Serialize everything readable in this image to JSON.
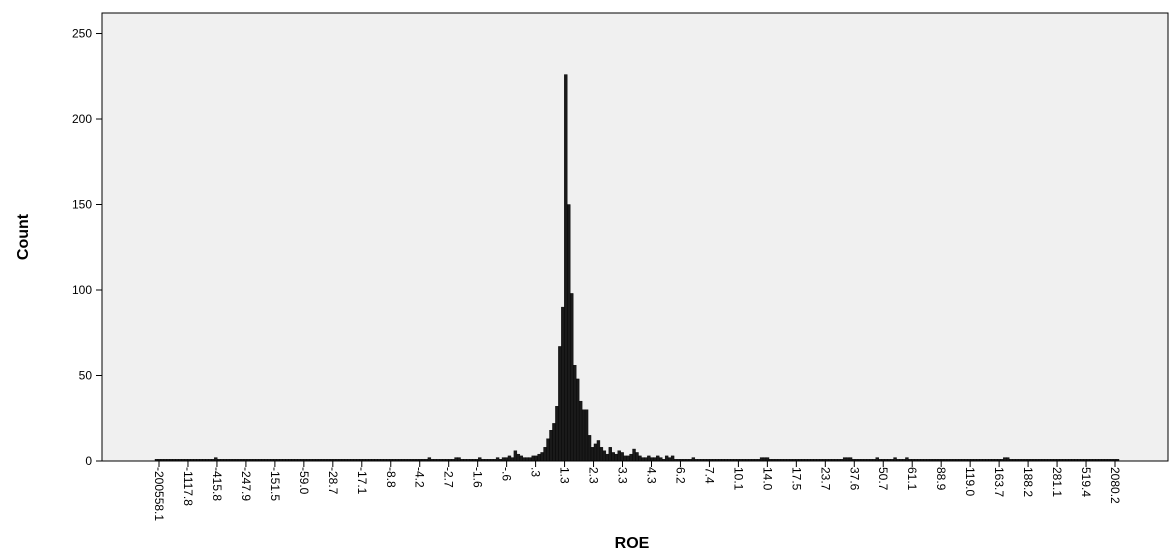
{
  "chart_data": {
    "type": "bar",
    "xlabel": "ROE",
    "ylabel": "Count",
    "ylim": [
      0,
      262
    ],
    "y_ticks": [
      0,
      50,
      100,
      150,
      200,
      250
    ],
    "x_tick_labels": [
      "-200558.1",
      "-1117.8",
      "-415.8",
      "-247.9",
      "-151.5",
      "-59.0",
      "-28.7",
      "-17.1",
      "-8.8",
      "-4.2",
      "-2.7",
      "-1.6",
      "-.6",
      ".3",
      "1.3",
      "2.3",
      "3.3",
      "4.3",
      "6.2",
      "7.4",
      "10.1",
      "14.0",
      "17.5",
      "23.7",
      "37.6",
      "50.7",
      "61.1",
      "88.9",
      "119.0",
      "163.7",
      "188.2",
      "281.1",
      "519.4",
      "2080.2"
    ],
    "bin_counts": [
      1,
      1,
      1,
      1,
      1,
      1,
      1,
      1,
      1,
      1,
      1,
      1,
      1,
      1,
      1,
      1,
      1,
      1,
      1,
      1,
      2,
      1,
      1,
      1,
      1,
      1,
      1,
      1,
      1,
      1,
      1,
      1,
      1,
      1,
      1,
      1,
      1,
      1,
      1,
      1,
      1,
      1,
      1,
      1,
      1,
      1,
      1,
      1,
      1,
      1,
      1,
      1,
      1,
      1,
      1,
      1,
      1,
      1,
      1,
      1,
      1,
      1,
      1,
      1,
      1,
      1,
      1,
      1,
      1,
      1,
      1,
      1,
      1,
      1,
      1,
      1,
      1,
      1,
      1,
      1,
      1,
      1,
      1,
      1,
      1,
      1,
      1,
      1,
      1,
      1,
      1,
      1,
      2,
      1,
      1,
      1,
      1,
      1,
      1,
      1,
      1,
      2,
      2,
      1,
      1,
      1,
      1,
      1,
      1,
      2,
      1,
      1,
      1,
      1,
      1,
      2,
      1,
      2,
      2,
      3,
      2,
      6,
      4,
      3,
      2,
      2,
      2,
      3,
      3,
      4,
      5,
      8,
      13,
      18,
      22,
      32,
      67,
      90,
      226,
      150,
      98,
      56,
      48,
      35,
      30,
      30,
      15,
      8,
      10,
      12,
      8,
      6,
      4,
      8,
      5,
      4,
      6,
      5,
      3,
      3,
      4,
      7,
      5,
      3,
      2,
      2,
      3,
      2,
      2,
      3,
      2,
      1,
      3,
      2,
      3,
      1,
      1,
      1,
      1,
      1,
      1,
      2,
      1,
      1,
      1,
      1,
      1,
      1,
      1,
      1,
      1,
      1,
      1,
      1,
      1,
      1,
      1,
      1,
      1,
      1,
      1,
      1,
      1,
      1,
      2,
      2,
      2,
      1,
      1,
      1,
      1,
      1,
      1,
      1,
      1,
      1,
      1,
      1,
      1,
      1,
      1,
      1,
      1,
      1,
      1,
      1,
      1,
      1,
      1,
      1,
      1,
      1,
      2,
      2,
      2,
      1,
      1,
      1,
      1,
      1,
      1,
      1,
      1,
      2,
      1,
      1,
      1,
      1,
      1,
      2,
      1,
      1,
      1,
      2,
      1,
      1,
      1,
      1,
      1,
      1,
      1,
      1,
      1,
      1,
      1,
      1,
      1,
      1,
      1,
      1,
      1,
      1,
      1,
      1,
      1,
      1,
      1,
      1,
      1,
      1,
      1,
      1,
      1,
      1,
      1,
      1,
      2,
      2,
      1,
      1,
      1,
      1,
      1,
      1,
      1,
      1,
      1,
      1,
      1,
      1,
      1,
      1,
      1,
      1,
      1,
      1,
      1,
      1,
      1,
      1,
      1,
      1,
      1,
      1,
      1,
      1,
      1,
      1,
      1,
      1,
      1,
      1,
      1,
      1,
      1
    ],
    "grid": false,
    "colors": {
      "bar_fill": "#1a1a1a",
      "bar_edge": "#000000",
      "plot_background": "#f0f0f0",
      "axis": "#000000"
    }
  }
}
